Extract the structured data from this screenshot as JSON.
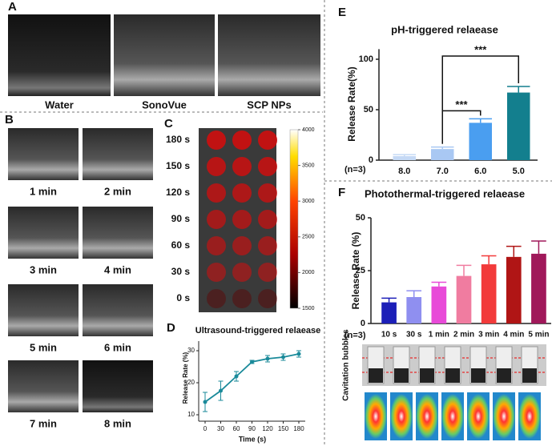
{
  "panels": {
    "labels": [
      "A",
      "B",
      "C",
      "D",
      "E",
      "F"
    ],
    "a_captions": [
      "Water",
      "SonoVue",
      "SCP NPs"
    ],
    "b_captions": [
      "1 min",
      "2 min",
      "3 min",
      "4 min",
      "5 min",
      "6 min",
      "7 min",
      "8 min"
    ],
    "c_rows": [
      "180 s",
      "150 s",
      "120 s",
      "90 s",
      "60 s",
      "30 s",
      "0 s"
    ],
    "c_colorbar": {
      "lim": [
        1500,
        4000
      ],
      "ticks": [
        4000,
        3500,
        3000,
        2500,
        2000,
        1500
      ]
    },
    "f_image_label": "Cavitation bubbles"
  },
  "chart_data": [
    {
      "type": "bar",
      "title": "pH-triggered relaease",
      "y_label": "Release Rate(%)",
      "sample_label": "(n=3)",
      "categories": [
        "8.0",
        "7.0",
        "6.0",
        "5.0"
      ],
      "values": [
        4,
        11,
        37,
        67
      ],
      "errors": [
        1.5,
        2,
        4,
        6
      ],
      "colors": [
        "#c5d9f5",
        "#a9c8f3",
        "#4a9ef0",
        "#137f8e"
      ],
      "ylim": [
        0,
        110
      ],
      "yticks": [
        0,
        50,
        100
      ],
      "annotations": [
        {
          "text": "***",
          "from": "7.0",
          "to": "6.0"
        },
        {
          "text": "***",
          "from": "7.0",
          "to": "5.0"
        }
      ]
    },
    {
      "type": "bar",
      "title": "Photothermal-triggered relaease",
      "y_label": "Release Rate (%)",
      "sample_label": "(n=3)",
      "categories": [
        "10 s",
        "30 s",
        "1 min",
        "2 min",
        "3 min",
        "4 min",
        "5 min"
      ],
      "values": [
        10,
        12.5,
        17.5,
        22.5,
        28,
        31.5,
        33
      ],
      "errors": [
        2,
        3,
        2,
        5,
        4,
        5,
        6
      ],
      "colors": [
        "#1c1fb8",
        "#8f8ff0",
        "#e84ad8",
        "#f07ca0",
        "#f23a3a",
        "#b01515",
        "#a0185a"
      ],
      "ylim": [
        0,
        50
      ],
      "yticks": [
        0,
        25,
        50
      ]
    },
    {
      "type": "line",
      "title": "Ultrasound-triggered relaease",
      "x_label": "Time (s)",
      "y_label": "Release Rate (%)",
      "x": [
        0,
        30,
        60,
        90,
        120,
        150,
        180
      ],
      "values": [
        14,
        17.5,
        22,
        26.5,
        27.5,
        28,
        29
      ],
      "errors": [
        3,
        3,
        1.5,
        0.5,
        1,
        1,
        1
      ],
      "color": "#1a8a9a",
      "xlim": [
        0,
        180
      ],
      "xticks": [
        0,
        30,
        60,
        90,
        120,
        150,
        180
      ],
      "ylim": [
        8,
        33
      ],
      "yticks": [
        10,
        20,
        30
      ]
    }
  ]
}
